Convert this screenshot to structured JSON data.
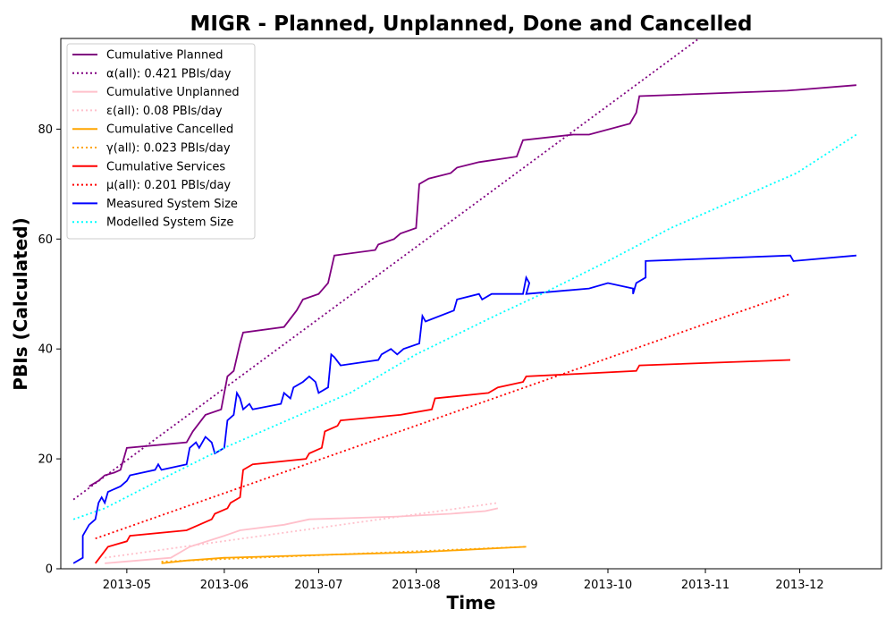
{
  "chart_data": {
    "type": "line",
    "title": "MIGR - Planned, Unplanned, Done  and Cancelled",
    "xlabel": "Time",
    "ylabel": "PBIs (Calculated)",
    "xlim": [
      "2013-04-10",
      "2013-12-27"
    ],
    "ylim": [
      0,
      96.5
    ],
    "x_ticks": [
      "2013-05",
      "2013-06",
      "2013-07",
      "2013-08",
      "2013-09",
      "2013-10",
      "2013-11",
      "2013-12"
    ],
    "y_ticks": [
      0,
      20,
      40,
      60,
      80
    ],
    "grid": false,
    "legend_position": "upper-left",
    "series": [
      {
        "name": "Cumulative Planned",
        "color": "#800080",
        "style": "solid",
        "points": [
          [
            "2013-04-19",
            15
          ],
          [
            "2013-04-22",
            16
          ],
          [
            "2013-04-24",
            17
          ],
          [
            "2013-04-27",
            17.5
          ],
          [
            "2013-04-29",
            18
          ],
          [
            "2013-05-01",
            22
          ],
          [
            "2013-05-20",
            23
          ],
          [
            "2013-05-22",
            25
          ],
          [
            "2013-05-26",
            28
          ],
          [
            "2013-05-31",
            29
          ],
          [
            "2013-06-02",
            35
          ],
          [
            "2013-06-04",
            36
          ],
          [
            "2013-06-06",
            41
          ],
          [
            "2013-06-07",
            43
          ],
          [
            "2013-06-20",
            44
          ],
          [
            "2013-06-24",
            47
          ],
          [
            "2013-06-26",
            49
          ],
          [
            "2013-07-01",
            50
          ],
          [
            "2013-07-04",
            52
          ],
          [
            "2013-07-06",
            57
          ],
          [
            "2013-07-19",
            58
          ],
          [
            "2013-07-20",
            59
          ],
          [
            "2013-07-25",
            60
          ],
          [
            "2013-07-27",
            61
          ],
          [
            "2013-08-01",
            62
          ],
          [
            "2013-08-02",
            70
          ],
          [
            "2013-08-05",
            71
          ],
          [
            "2013-08-12",
            72
          ],
          [
            "2013-08-14",
            73
          ],
          [
            "2013-08-21",
            74
          ],
          [
            "2013-09-02",
            75
          ],
          [
            "2013-09-04",
            78
          ],
          [
            "2013-09-20",
            79
          ],
          [
            "2013-09-25",
            79
          ],
          [
            "2013-10-08",
            81
          ],
          [
            "2013-10-10",
            83
          ],
          [
            "2013-10-11",
            86
          ],
          [
            "2013-11-27",
            87
          ],
          [
            "2013-12-19",
            88
          ]
        ]
      },
      {
        "name": "α(all): 0.421 PBIs/day",
        "color": "#800080",
        "style": "dotted",
        "points": [
          [
            "2013-04-14",
            12.6
          ],
          [
            "2013-10-30",
            96.5
          ]
        ]
      },
      {
        "name": "Cumulative Unplanned",
        "color": "#FFC0CB",
        "style": "solid",
        "points": [
          [
            "2013-04-24",
            1
          ],
          [
            "2013-05-15",
            2
          ],
          [
            "2013-05-21",
            4
          ],
          [
            "2013-06-01",
            6
          ],
          [
            "2013-06-06",
            7
          ],
          [
            "2013-06-20",
            8
          ],
          [
            "2013-06-28",
            9
          ],
          [
            "2013-07-26",
            9.5
          ],
          [
            "2013-08-12",
            10
          ],
          [
            "2013-08-23",
            10.5
          ],
          [
            "2013-08-27",
            11
          ]
        ]
      },
      {
        "name": "ε(all): 0.08 PBIs/day",
        "color": "#FFC0CB",
        "style": "dotted",
        "points": [
          [
            "2013-04-24",
            2
          ],
          [
            "2013-08-27",
            12
          ]
        ]
      },
      {
        "name": "Cumulative Cancelled",
        "color": "#FFA500",
        "style": "solid",
        "points": [
          [
            "2013-05-12",
            1
          ],
          [
            "2013-05-20",
            1.5
          ],
          [
            "2013-06-01",
            2
          ],
          [
            "2013-07-01",
            2.5
          ],
          [
            "2013-08-01",
            3
          ],
          [
            "2013-09-05",
            4
          ]
        ]
      },
      {
        "name": "γ(all): 0.023 PBIs/day",
        "color": "#FFA500",
        "style": "dotted",
        "points": [
          [
            "2013-05-12",
            1.3
          ],
          [
            "2013-09-05",
            4
          ]
        ]
      },
      {
        "name": "Cumulative Services",
        "color": "#FF0000",
        "style": "solid",
        "points": [
          [
            "2013-04-21",
            1
          ],
          [
            "2013-04-25",
            4
          ],
          [
            "2013-05-01",
            5
          ],
          [
            "2013-05-02",
            6
          ],
          [
            "2013-05-20",
            7
          ],
          [
            "2013-05-28",
            9
          ],
          [
            "2013-05-29",
            10
          ],
          [
            "2013-06-02",
            11
          ],
          [
            "2013-06-03",
            12
          ],
          [
            "2013-06-06",
            13
          ],
          [
            "2013-06-07",
            18
          ],
          [
            "2013-06-10",
            19
          ],
          [
            "2013-06-27",
            20
          ],
          [
            "2013-06-28",
            21
          ],
          [
            "2013-07-02",
            22
          ],
          [
            "2013-07-03",
            25
          ],
          [
            "2013-07-07",
            26
          ],
          [
            "2013-07-08",
            27
          ],
          [
            "2013-07-27",
            28
          ],
          [
            "2013-08-06",
            29
          ],
          [
            "2013-08-07",
            31
          ],
          [
            "2013-08-24",
            32
          ],
          [
            "2013-08-27",
            33
          ],
          [
            "2013-09-04",
            34
          ],
          [
            "2013-09-05",
            35
          ],
          [
            "2013-10-10",
            36
          ],
          [
            "2013-10-11",
            37
          ],
          [
            "2013-11-28",
            38
          ]
        ]
      },
      {
        "name": "μ(all): 0.201 PBIs/day",
        "color": "#FF0000",
        "style": "dotted",
        "points": [
          [
            "2013-04-21",
            5.5
          ],
          [
            "2013-11-28",
            50
          ]
        ]
      },
      {
        "name": "Measured System Size",
        "color": "#0000FF",
        "style": "solid",
        "points": [
          [
            "2013-04-14",
            1
          ],
          [
            "2013-04-17",
            2
          ],
          [
            "2013-04-17",
            6
          ],
          [
            "2013-04-19",
            8
          ],
          [
            "2013-04-21",
            9
          ],
          [
            "2013-04-22",
            12
          ],
          [
            "2013-04-23",
            13
          ],
          [
            "2013-04-24",
            12
          ],
          [
            "2013-04-25",
            14
          ],
          [
            "2013-04-27",
            14.5
          ],
          [
            "2013-04-29",
            15
          ],
          [
            "2013-05-01",
            16
          ],
          [
            "2013-05-02",
            17
          ],
          [
            "2013-05-10",
            18
          ],
          [
            "2013-05-11",
            19
          ],
          [
            "2013-05-12",
            18
          ],
          [
            "2013-05-20",
            19
          ],
          [
            "2013-05-21",
            22
          ],
          [
            "2013-05-23",
            23
          ],
          [
            "2013-05-24",
            22
          ],
          [
            "2013-05-26",
            24
          ],
          [
            "2013-05-28",
            23
          ],
          [
            "2013-05-29",
            21
          ],
          [
            "2013-06-01",
            22
          ],
          [
            "2013-06-02",
            27
          ],
          [
            "2013-06-04",
            28
          ],
          [
            "2013-06-05",
            32
          ],
          [
            "2013-06-06",
            31
          ],
          [
            "2013-06-07",
            29
          ],
          [
            "2013-06-09",
            30
          ],
          [
            "2013-06-10",
            29
          ],
          [
            "2013-06-19",
            30
          ],
          [
            "2013-06-20",
            32
          ],
          [
            "2013-06-22",
            31
          ],
          [
            "2013-06-23",
            33
          ],
          [
            "2013-06-26",
            34
          ],
          [
            "2013-06-28",
            35
          ],
          [
            "2013-06-30",
            34
          ],
          [
            "2013-07-01",
            32
          ],
          [
            "2013-07-04",
            33
          ],
          [
            "2013-07-05",
            39
          ],
          [
            "2013-07-06",
            38.5
          ],
          [
            "2013-07-08",
            37
          ],
          [
            "2013-07-20",
            38
          ],
          [
            "2013-07-21",
            39
          ],
          [
            "2013-07-24",
            40
          ],
          [
            "2013-07-26",
            39
          ],
          [
            "2013-07-28",
            40
          ],
          [
            "2013-08-02",
            41
          ],
          [
            "2013-08-03",
            46
          ],
          [
            "2013-08-04",
            45
          ],
          [
            "2013-08-13",
            47
          ],
          [
            "2013-08-14",
            49
          ],
          [
            "2013-08-21",
            50
          ],
          [
            "2013-08-22",
            49
          ],
          [
            "2013-08-25",
            50
          ],
          [
            "2013-09-04",
            50
          ],
          [
            "2013-09-05",
            53
          ],
          [
            "2013-09-06",
            52
          ],
          [
            "2013-09-05",
            50
          ],
          [
            "2013-09-25",
            51
          ],
          [
            "2013-10-01",
            52
          ],
          [
            "2013-10-09",
            51
          ],
          [
            "2013-10-09",
            50
          ],
          [
            "2013-10-10",
            52
          ],
          [
            "2013-10-13",
            53
          ],
          [
            "2013-10-13",
            56
          ],
          [
            "2013-11-28",
            57
          ],
          [
            "2013-11-29",
            56
          ],
          [
            "2013-12-19",
            57
          ]
        ]
      },
      {
        "name": "Modelled System Size",
        "color": "#00FFFF",
        "style": "dotted",
        "points": [
          [
            "2013-04-14",
            9
          ],
          [
            "2013-04-24",
            11
          ],
          [
            "2013-05-11",
            16
          ],
          [
            "2013-06-01",
            22
          ],
          [
            "2013-06-21",
            27
          ],
          [
            "2013-07-11",
            32
          ],
          [
            "2013-08-01",
            39
          ],
          [
            "2013-08-26",
            46
          ],
          [
            "2013-09-10",
            50
          ],
          [
            "2013-10-01",
            56
          ],
          [
            "2013-10-21",
            62
          ],
          [
            "2013-11-10",
            67
          ],
          [
            "2013-11-30",
            72
          ],
          [
            "2013-12-19",
            79
          ]
        ]
      }
    ]
  }
}
